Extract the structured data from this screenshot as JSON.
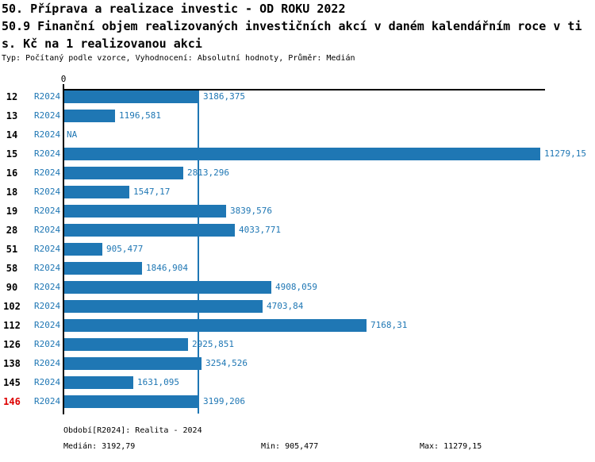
{
  "title": {
    "line1": "50. Příprava a realizace investic - OD ROKU 2022",
    "line2": "50.9 Finanční objem realizovaných investičních akcí v daném kalendářním roce v ti",
    "line3": "s. Kč na 1 realizovanou akci",
    "meta": "Typ: Počítaný podle vzorce, Vyhodnocení: Absolutní hodnoty, Průměr: Medián"
  },
  "chart_data": {
    "type": "bar",
    "orientation": "horizontal",
    "x_tick_zero": "0",
    "series_label": "R2024",
    "categories": [
      "12",
      "13",
      "14",
      "15",
      "16",
      "18",
      "19",
      "28",
      "51",
      "58",
      "90",
      "102",
      "112",
      "126",
      "138",
      "145",
      "146"
    ],
    "values": [
      3186.375,
      1196.581,
      null,
      11279.15,
      2813.296,
      1547.17,
      3839.576,
      4033.771,
      905.477,
      1846.904,
      4908.059,
      4703.84,
      7168.31,
      2925.851,
      3254.526,
      1631.095,
      3199.206
    ],
    "value_labels": [
      "3186,375",
      "1196,581",
      "NA",
      "11279,15",
      "2813,296",
      "1547,17",
      "3839,576",
      "4033,771",
      "905,477",
      "1846,904",
      "4908,059",
      "4703,84",
      "7168,31",
      "2925,851",
      "3254,526",
      "1631,095",
      "3199,206"
    ],
    "highlighted_category": "146",
    "x_max": 11279.15,
    "median_line_value": 3192.79,
    "legend_position": "none",
    "grid": false,
    "colors": {
      "bar": "#1f77b4",
      "blue_text": "#1f77b4",
      "median_line": "#1f77b4",
      "highlight_red": "#dd0000",
      "axis": "#000000"
    }
  },
  "footer": {
    "period": "Období[R2024]: Realita - 2024",
    "median": "Medián: 3192,79",
    "min": "Min: 905,477",
    "max": "Max: 11279,15"
  }
}
